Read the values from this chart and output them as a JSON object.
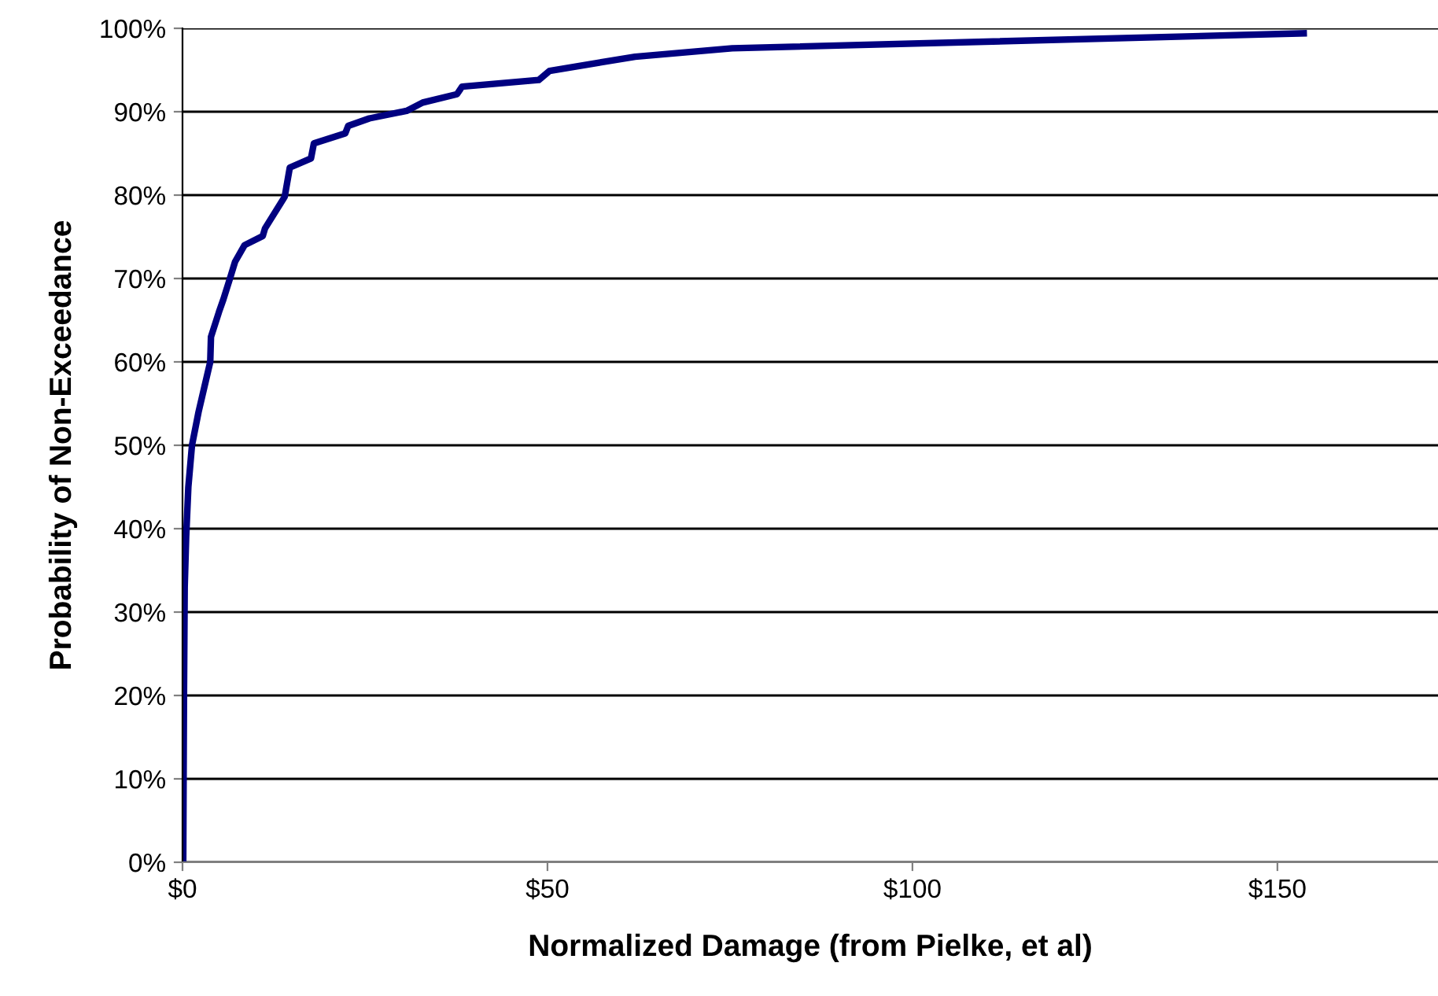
{
  "chart_data": {
    "type": "line",
    "xlabel": "Normalized Damage (from Pielke, et al)",
    "ylabel": "Probability of Non-Exceedance",
    "series": [
      {
        "color": "#000080",
        "x": [
          0.1,
          0.2,
          0.3,
          0.5,
          0.8,
          1.3,
          2.2,
          3.0,
          3.8,
          3.9,
          5.0,
          5.6,
          6.5,
          7.2,
          8.5,
          11,
          11.3,
          14,
          14.7,
          17.6,
          18,
          22.3,
          22.7,
          25.6,
          30.7,
          32.9,
          37.6,
          38.3,
          48.8,
          50.3,
          62,
          75.3,
          153.6
        ],
        "values": [
          0.5,
          20,
          33,
          39,
          45,
          50,
          54,
          57,
          60,
          63,
          66,
          67.5,
          70,
          72,
          74,
          75.1,
          76,
          79.8,
          83.3,
          84.4,
          86.2,
          87.4,
          88.3,
          89.2,
          90.1,
          91.1,
          92.1,
          93.0,
          93.8,
          94.9,
          96.6,
          97.6,
          99.4
        ]
      }
    ],
    "xlim": [
      0,
      172
    ],
    "xticks": [
      {
        "value": 0,
        "label": "$0"
      },
      {
        "value": 50,
        "label": "$50"
      },
      {
        "value": 100,
        "label": "$100"
      },
      {
        "value": 150,
        "label": "$150"
      }
    ],
    "ylim": [
      0,
      100
    ],
    "yticks": [
      {
        "value": 0,
        "label": "0%"
      },
      {
        "value": 10,
        "label": "10%"
      },
      {
        "value": 20,
        "label": "20%"
      },
      {
        "value": 30,
        "label": "30%"
      },
      {
        "value": 40,
        "label": "40%"
      },
      {
        "value": 50,
        "label": "50%"
      },
      {
        "value": 60,
        "label": "60%"
      },
      {
        "value": 70,
        "label": "70%"
      },
      {
        "value": 80,
        "label": "80%"
      },
      {
        "value": 90,
        "label": "90%"
      },
      {
        "value": 100,
        "label": "100%"
      }
    ],
    "grid": "y",
    "line_style": "solid",
    "marker": "none"
  }
}
